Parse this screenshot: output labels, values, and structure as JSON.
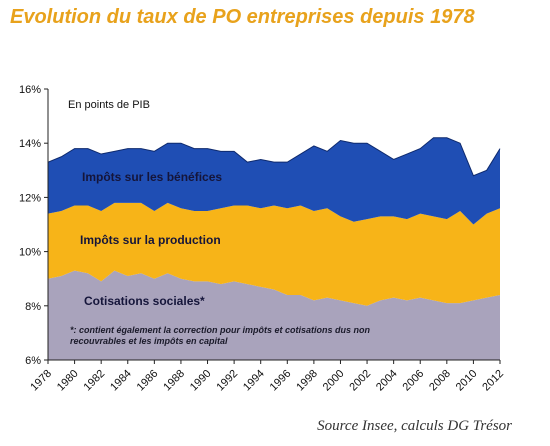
{
  "chart_data": {
    "type": "area",
    "title": "Evolution du taux de PO entreprises depuis 1978",
    "unit_label": "En points de PIB",
    "stacked": true,
    "ylim": [
      6,
      16
    ],
    "y_ticks": [
      "6%",
      "8%",
      "10%",
      "12%",
      "14%",
      "16%"
    ],
    "x": [
      1978,
      1979,
      1980,
      1981,
      1982,
      1983,
      1984,
      1985,
      1986,
      1987,
      1988,
      1989,
      1990,
      1991,
      1992,
      1993,
      1994,
      1995,
      1996,
      1997,
      1998,
      1999,
      2000,
      2001,
      2002,
      2003,
      2004,
      2005,
      2006,
      2007,
      2008,
      2009,
      2010,
      2011,
      2012
    ],
    "x_tick_labels": [
      "1978",
      "1980",
      "1982",
      "1984",
      "1986",
      "1988",
      "1990",
      "1992",
      "1994",
      "1996",
      "1998",
      "2000",
      "2002",
      "2004",
      "2006",
      "2008",
      "2010",
      "2012"
    ],
    "series": [
      {
        "name": "Cotisations sociales*",
        "color": "#a9a3bc",
        "cumulative_top": [
          9.0,
          9.1,
          9.3,
          9.2,
          8.9,
          9.3,
          9.1,
          9.2,
          9.0,
          9.2,
          9.0,
          8.9,
          8.9,
          8.8,
          8.9,
          8.8,
          8.7,
          8.6,
          8.4,
          8.4,
          8.2,
          8.3,
          8.2,
          8.1,
          8.0,
          8.2,
          8.3,
          8.2,
          8.3,
          8.2,
          8.1,
          8.1,
          8.2,
          8.3,
          8.4
        ]
      },
      {
        "name": "Impôts sur la production",
        "color": "#f7b418",
        "cumulative_top": [
          11.4,
          11.5,
          11.7,
          11.7,
          11.5,
          11.8,
          11.8,
          11.8,
          11.5,
          11.8,
          11.6,
          11.5,
          11.5,
          11.6,
          11.7,
          11.7,
          11.6,
          11.7,
          11.6,
          11.7,
          11.5,
          11.6,
          11.3,
          11.1,
          11.2,
          11.3,
          11.3,
          11.2,
          11.4,
          11.3,
          11.2,
          11.5,
          11.0,
          11.4,
          11.6
        ]
      },
      {
        "name": "Impôts sur les bénéfices",
        "color": "#1f4eb4",
        "cumulative_top": [
          13.3,
          13.5,
          13.8,
          13.8,
          13.6,
          13.7,
          13.8,
          13.8,
          13.7,
          14.0,
          14.0,
          13.8,
          13.8,
          13.7,
          13.7,
          13.3,
          13.4,
          13.3,
          13.3,
          13.6,
          13.9,
          13.7,
          14.1,
          14.0,
          14.0,
          13.7,
          13.4,
          13.6,
          13.8,
          14.2,
          14.2,
          14.0,
          12.8,
          13.0,
          13.8
        ]
      }
    ],
    "footnote_lines": [
      "*: contient également la correction pour impôts et cotisations dus non",
      "recouvrables et les impôts en capital"
    ]
  },
  "source": "Source Insee, calculs DG Trésor"
}
